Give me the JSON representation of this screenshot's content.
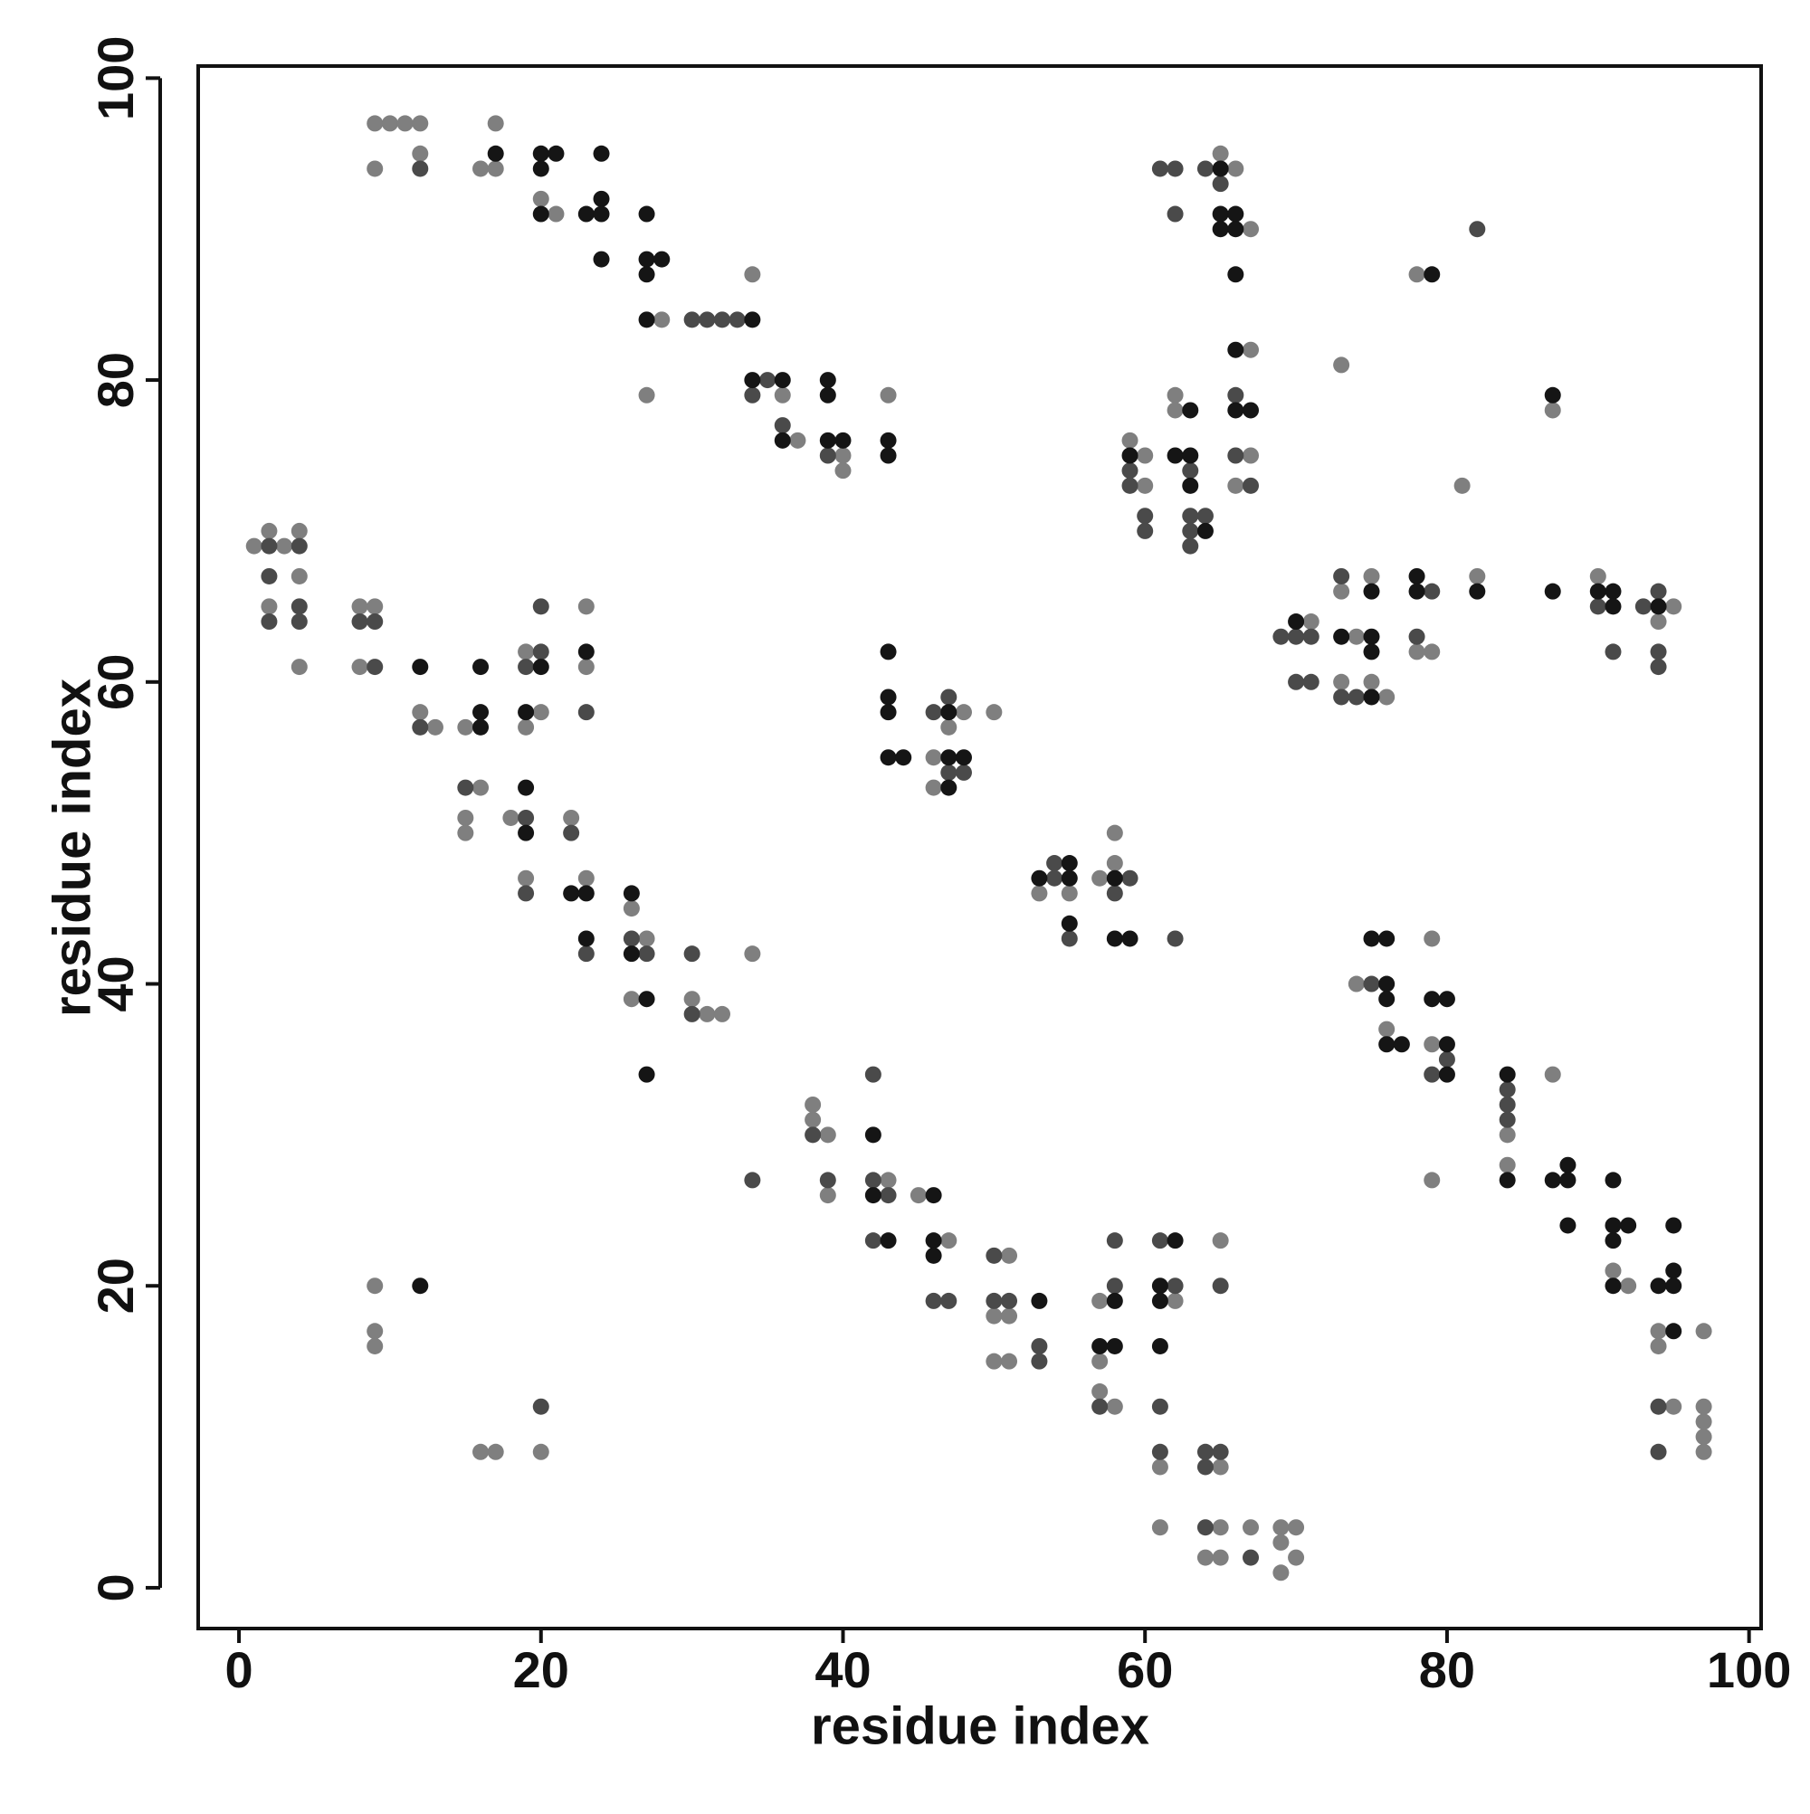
{
  "chart_data": {
    "type": "scatter",
    "xlabel": "residue index",
    "ylabel": "residue index",
    "xlim": [
      -2.7,
      100.8
    ],
    "ylim": [
      -2.7,
      100.8
    ],
    "xticks": [
      0,
      20,
      40,
      60,
      80,
      100
    ],
    "yticks": [
      0,
      20,
      40,
      60,
      80,
      100
    ],
    "series": [
      {
        "color": "#7f7f7f",
        "x": [
          9,
          10,
          11,
          12,
          17,
          12,
          9,
          16,
          17,
          20,
          21,
          34,
          28,
          27,
          36,
          43,
          37,
          40,
          40,
          65,
          66,
          67,
          78,
          67,
          73,
          62,
          62,
          87,
          59,
          60,
          67,
          60,
          66,
          81,
          2,
          4,
          1,
          3,
          4,
          2,
          8,
          9,
          23,
          4,
          8,
          23,
          19,
          12,
          20,
          13,
          15,
          19,
          16,
          15,
          18,
          22,
          15,
          19,
          23,
          26,
          27,
          34,
          26,
          30,
          31,
          32,
          48,
          50,
          47,
          46,
          46,
          58,
          58,
          57,
          53,
          55,
          75,
          82,
          90,
          73,
          95,
          71,
          94,
          74,
          78,
          79,
          73,
          75,
          76,
          79,
          74,
          76,
          79,
          87,
          84,
          84,
          79,
          91,
          92,
          94,
          97,
          94,
          95,
          97,
          97,
          97,
          97,
          38,
          38,
          39,
          43,
          39,
          45,
          47,
          65,
          51,
          57,
          62,
          50,
          51,
          50,
          51,
          57,
          57,
          58,
          61,
          65,
          61,
          65,
          67,
          69,
          70,
          69,
          64,
          65,
          70,
          69,
          9,
          9,
          9,
          16,
          17,
          20
        ],
        "values": [
          97,
          97,
          97,
          97,
          97,
          95,
          94,
          94,
          94,
          92,
          91,
          87,
          84,
          79,
          79,
          79,
          76,
          75,
          74,
          95,
          94,
          90,
          87,
          82,
          81,
          79,
          78,
          78,
          76,
          75,
          75,
          73,
          73,
          73,
          70,
          70,
          69,
          69,
          67,
          65,
          65,
          65,
          65,
          61,
          61,
          61,
          62,
          58,
          58,
          57,
          57,
          57,
          53,
          51,
          51,
          51,
          50,
          47,
          47,
          45,
          43,
          42,
          39,
          39,
          38,
          38,
          58,
          58,
          57,
          55,
          53,
          50,
          48,
          47,
          46,
          46,
          67,
          67,
          67,
          66,
          65,
          64,
          64,
          63,
          62,
          62,
          60,
          60,
          59,
          43,
          40,
          37,
          36,
          34,
          30,
          28,
          27,
          21,
          20,
          17,
          17,
          16,
          12,
          12,
          11,
          10,
          9,
          32,
          31,
          30,
          27,
          26,
          26,
          23,
          23,
          22,
          19,
          19,
          18,
          18,
          15,
          15,
          15,
          13,
          12,
          8,
          8,
          4,
          4,
          4,
          4,
          4,
          3,
          2,
          2,
          2,
          1,
          20,
          17,
          16,
          9,
          9,
          9
        ]
      },
      {
        "color": "#4a4a4a",
        "x": [
          12,
          61,
          62,
          64,
          65,
          62,
          82,
          30,
          31,
          32,
          33,
          35,
          34,
          36,
          39,
          66,
          59,
          63,
          59,
          67,
          60,
          63,
          64,
          60,
          63,
          63,
          66,
          2,
          4,
          2,
          4,
          20,
          2,
          4,
          8,
          9,
          20,
          9,
          19,
          23,
          12,
          15,
          19,
          22,
          19,
          26,
          23,
          27,
          30,
          30,
          47,
          46,
          47,
          48,
          54,
          54,
          59,
          58,
          55,
          62,
          79,
          94,
          90,
          93,
          69,
          70,
          71,
          78,
          91,
          94,
          94,
          70,
          71,
          73,
          74,
          73,
          75,
          80,
          79,
          84,
          84,
          84,
          94,
          94,
          42,
          38,
          34,
          39,
          42,
          43,
          42,
          61,
          58,
          50,
          58,
          62,
          65,
          46,
          47,
          50,
          51,
          53,
          53,
          57,
          61,
          61,
          64,
          65,
          64,
          64,
          67,
          20
        ],
        "values": [
          94,
          94,
          94,
          94,
          93,
          91,
          90,
          84,
          84,
          84,
          84,
          80,
          79,
          77,
          75,
          75,
          74,
          74,
          73,
          73,
          71,
          71,
          71,
          70,
          70,
          69,
          79,
          69,
          69,
          67,
          65,
          65,
          64,
          64,
          64,
          64,
          62,
          61,
          61,
          58,
          57,
          53,
          51,
          50,
          46,
          43,
          42,
          42,
          42,
          38,
          59,
          58,
          54,
          54,
          48,
          47,
          47,
          46,
          43,
          43,
          66,
          66,
          65,
          65,
          63,
          63,
          63,
          63,
          62,
          62,
          61,
          60,
          60,
          59,
          59,
          67,
          40,
          35,
          34,
          33,
          32,
          31,
          12,
          9,
          34,
          30,
          27,
          27,
          27,
          26,
          23,
          23,
          23,
          22,
          20,
          20,
          20,
          19,
          19,
          19,
          19,
          16,
          15,
          12,
          12,
          9,
          9,
          9,
          8,
          4,
          2,
          12
        ]
      },
      {
        "color": "#151515",
        "x": [
          17,
          20,
          21,
          24,
          20,
          24,
          20,
          23,
          24,
          27,
          24,
          27,
          28,
          27,
          27,
          34,
          34,
          36,
          39,
          39,
          36,
          39,
          40,
          43,
          43,
          65,
          65,
          66,
          65,
          66,
          66,
          79,
          66,
          87,
          63,
          66,
          67,
          59,
          62,
          63,
          63,
          64,
          23,
          12,
          16,
          20,
          16,
          19,
          16,
          19,
          19,
          22,
          23,
          26,
          23,
          26,
          27,
          27,
          43,
          43,
          43,
          47,
          43,
          44,
          47,
          48,
          47,
          55,
          53,
          55,
          58,
          55,
          58,
          59,
          78,
          75,
          78,
          82,
          87,
          90,
          91,
          91,
          94,
          70,
          73,
          75,
          75,
          75,
          75,
          76,
          76,
          76,
          79,
          80,
          76,
          77,
          80,
          80,
          84,
          88,
          84,
          87,
          88,
          91,
          88,
          91,
          92,
          95,
          91,
          95,
          91,
          94,
          95,
          95,
          42,
          42,
          46,
          43,
          46,
          62,
          46,
          61,
          53,
          58,
          61,
          57,
          58,
          61,
          12
        ],
        "values": [
          95,
          95,
          95,
          95,
          94,
          92,
          91,
          91,
          91,
          91,
          88,
          88,
          88,
          87,
          84,
          84,
          80,
          80,
          80,
          79,
          76,
          76,
          76,
          76,
          75,
          94,
          91,
          91,
          90,
          90,
          87,
          87,
          82,
          79,
          78,
          78,
          78,
          75,
          75,
          75,
          73,
          70,
          62,
          61,
          61,
          61,
          58,
          58,
          57,
          53,
          50,
          46,
          46,
          46,
          43,
          42,
          39,
          34,
          62,
          59,
          58,
          58,
          55,
          55,
          55,
          55,
          53,
          48,
          47,
          47,
          47,
          44,
          43,
          43,
          67,
          66,
          66,
          66,
          66,
          66,
          66,
          65,
          65,
          64,
          63,
          63,
          62,
          59,
          43,
          43,
          40,
          39,
          39,
          39,
          36,
          36,
          36,
          34,
          34,
          28,
          27,
          27,
          27,
          27,
          24,
          24,
          24,
          24,
          23,
          21,
          20,
          20,
          20,
          17,
          30,
          26,
          26,
          23,
          23,
          23,
          22,
          20,
          19,
          19,
          19,
          16,
          16,
          16,
          20
        ]
      }
    ]
  }
}
